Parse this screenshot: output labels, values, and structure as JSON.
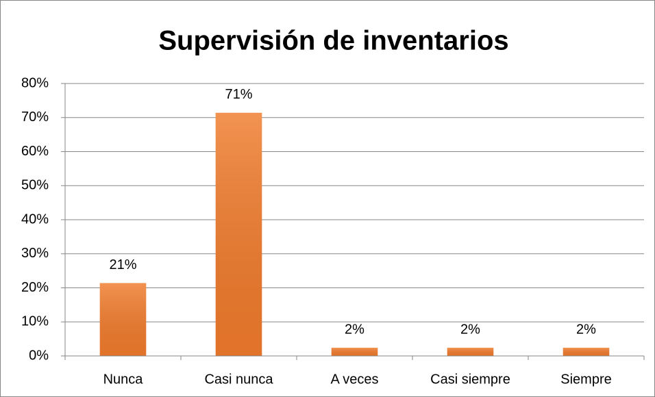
{
  "chart_data": {
    "type": "bar",
    "title": "Supervisión de inventarios",
    "categories": [
      "Nunca",
      "Casi nunca",
      "A veces",
      "Casi siempre",
      "Siempre"
    ],
    "values": [
      21.4,
      71.4,
      2.4,
      2.4,
      2.4
    ],
    "value_labels": [
      "21%",
      "71%",
      "2%",
      "2%",
      "2%"
    ],
    "color": "#f07b2c",
    "ylim": [
      0,
      80
    ],
    "yticks": [
      {
        "value": 0,
        "label": "0%"
      },
      {
        "value": 10,
        "label": "10%"
      },
      {
        "value": 20,
        "label": "20%"
      },
      {
        "value": 30,
        "label": "30%"
      },
      {
        "value": 40,
        "label": "40%"
      },
      {
        "value": 50,
        "label": "50%"
      },
      {
        "value": 60,
        "label": "60%"
      },
      {
        "value": 70,
        "label": "70%"
      },
      {
        "value": 80,
        "label": "80%"
      }
    ],
    "grid": true
  }
}
